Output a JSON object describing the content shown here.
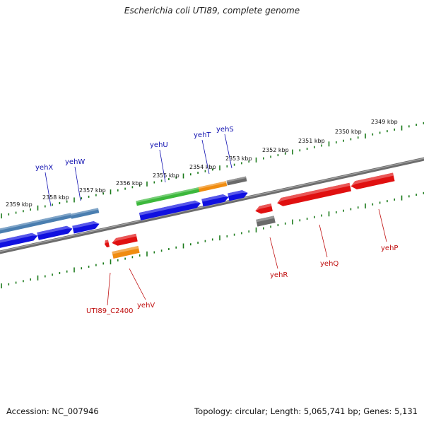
{
  "title": "Escherichia coli UTI89, complete genome",
  "footer": {
    "accession": "Accession: NC_007946",
    "topology": "Topology: circular; Length: 5,065,741 bp; Genes: 5,131"
  },
  "colors": {
    "tick": "#1a7a1a",
    "backbone": "#7a7a7a",
    "label_forward": "#1010b0",
    "label_reverse": "#c01010",
    "cds_blue": "#1010e0",
    "cds_red": "#e01010",
    "cds_steel": "#4a7eb0",
    "cds_green": "#3cb83c",
    "cds_orange": "#f08c10",
    "cds_gray": "#6a6a6a"
  },
  "kbp_labels": [
    "2349 kbp",
    "2350 kbp",
    "2351 kbp",
    "2352 kbp",
    "2353 kbp",
    "2354 kbp",
    "2355 kbp",
    "2356 kbp",
    "2357 kbp",
    "2358 kbp",
    "2359 kbp"
  ],
  "genes_forward": [
    "yehX",
    "yehW",
    "yehU",
    "yehT",
    "yehS"
  ],
  "genes_reverse": [
    "UTI89_C2400",
    "yehV",
    "yehR",
    "yehQ",
    "yehP"
  ]
}
